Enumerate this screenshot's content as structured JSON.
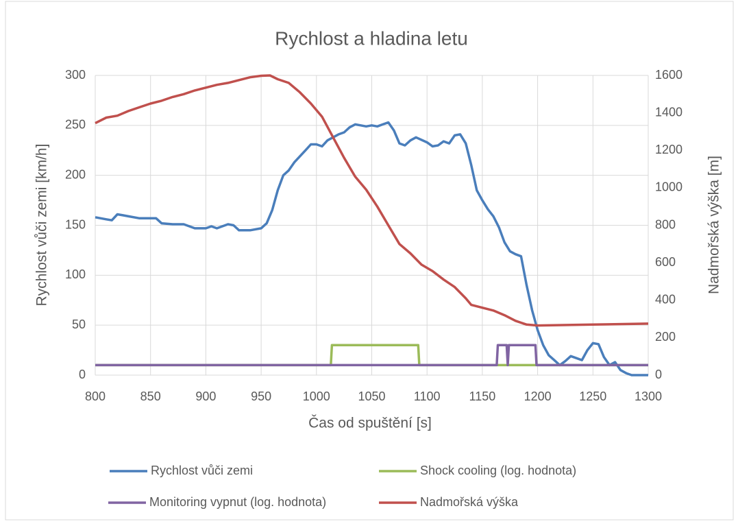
{
  "chart_data": {
    "type": "line",
    "title": "Rychlost a hladina letu",
    "xlabel": "Čas od spuštění [s]",
    "ylabel": "Rychlost vůči zemi [km/h]",
    "y2label": "Nadmořská výška [m]",
    "xlim": [
      800,
      1300
    ],
    "xticks": [
      800,
      850,
      900,
      950,
      1000,
      1050,
      1100,
      1150,
      1200,
      1250,
      1300
    ],
    "ylim": [
      0,
      300
    ],
    "yticks": [
      0,
      50,
      100,
      150,
      200,
      250,
      300
    ],
    "y2lim": [
      0,
      1600
    ],
    "y2ticks": [
      0,
      200,
      400,
      600,
      800,
      1000,
      1200,
      1400,
      1600
    ],
    "grid": true,
    "legend": "bottom",
    "series": [
      {
        "name": "Rychlost vůči zemi",
        "color": "#4a7ebb",
        "x": [
          800,
          810,
          815,
          820,
          825,
          830,
          840,
          850,
          855,
          860,
          870,
          880,
          890,
          900,
          905,
          910,
          920,
          925,
          930,
          940,
          950,
          955,
          960,
          965,
          970,
          975,
          980,
          990,
          995,
          1000,
          1005,
          1010,
          1020,
          1025,
          1030,
          1035,
          1040,
          1045,
          1050,
          1055,
          1060,
          1065,
          1070,
          1075,
          1080,
          1085,
          1090,
          1100,
          1105,
          1110,
          1115,
          1120,
          1125,
          1130,
          1135,
          1140,
          1145,
          1150,
          1155,
          1160,
          1165,
          1170,
          1175,
          1180,
          1185,
          1190,
          1195,
          1200,
          1205,
          1210,
          1215,
          1220,
          1225,
          1230,
          1235,
          1240,
          1245,
          1250,
          1255,
          1260,
          1265,
          1270,
          1275,
          1280,
          1285,
          1300
        ],
        "values": [
          158,
          156,
          155,
          161,
          160,
          159,
          157,
          157,
          157,
          152,
          151,
          151,
          147,
          147,
          149,
          147,
          151,
          150,
          145,
          145,
          147,
          152,
          165,
          185,
          200,
          205,
          213,
          225,
          231,
          231,
          229,
          235,
          241,
          243,
          248,
          251,
          250,
          249,
          250,
          249,
          251,
          253,
          245,
          232,
          230,
          235,
          238,
          233,
          229,
          230,
          234,
          232,
          240,
          241,
          232,
          210,
          185,
          175,
          166,
          159,
          148,
          133,
          124,
          121,
          119,
          90,
          65,
          45,
          30,
          20,
          15,
          10,
          14,
          19,
          17,
          15,
          25,
          32,
          31,
          18,
          10,
          13,
          5,
          2,
          0,
          0
        ]
      },
      {
        "name": "Shock cooling (log. hodnota)",
        "color": "#9bbb59",
        "x": [
          800,
          1013,
          1014,
          1092,
          1093,
          1300
        ],
        "values": [
          10,
          10,
          30,
          30,
          10,
          10
        ]
      },
      {
        "name": "Monitoring vypnut (log. hodnota)",
        "color": "#8064a2",
        "x": [
          800,
          1163,
          1164,
          1172,
          1173,
          1174,
          1198,
          1199,
          1300
        ],
        "values": [
          10,
          10,
          30,
          30,
          10,
          30,
          30,
          10,
          10
        ]
      },
      {
        "name": "Nadmořská výška",
        "color": "#c0504d",
        "axis": "y2",
        "x": [
          800,
          810,
          820,
          830,
          840,
          850,
          860,
          870,
          880,
          890,
          900,
          910,
          920,
          930,
          940,
          950,
          958,
          965,
          975,
          985,
          995,
          1005,
          1015,
          1025,
          1035,
          1045,
          1055,
          1065,
          1075,
          1085,
          1095,
          1105,
          1115,
          1125,
          1135,
          1140,
          1150,
          1160,
          1170,
          1180,
          1190,
          1200,
          1250,
          1300
        ],
        "values": [
          1345,
          1375,
          1385,
          1410,
          1430,
          1450,
          1465,
          1485,
          1500,
          1520,
          1535,
          1550,
          1560,
          1575,
          1590,
          1598,
          1600,
          1580,
          1560,
          1510,
          1450,
          1380,
          1270,
          1160,
          1060,
          990,
          900,
          800,
          700,
          650,
          590,
          555,
          510,
          470,
          410,
          375,
          360,
          345,
          320,
          290,
          270,
          265,
          270,
          275
        ]
      }
    ]
  }
}
